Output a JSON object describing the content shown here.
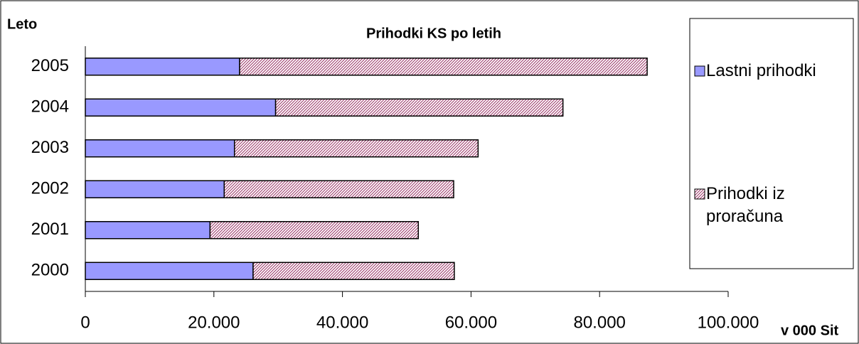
{
  "chart_data": {
    "type": "stacked-bar-horizontal",
    "title": "Prihodki KS po letih",
    "y_label": "Leto",
    "x_label": "v 000 Sit",
    "categories": [
      "2000",
      "2001",
      "2002",
      "2003",
      "2004",
      "2005"
    ],
    "series": [
      {
        "name": "Lastni prihodki",
        "color": "#9999ff",
        "values": [
          26100,
          19400,
          21600,
          23200,
          29600,
          24000
        ]
      },
      {
        "name": "Prihodki iz proračuna",
        "color": "#993366",
        "hatch": true,
        "values": [
          31300,
          32400,
          35700,
          37900,
          44700,
          63400
        ]
      }
    ],
    "xlim": [
      0,
      100000
    ],
    "xticks": [
      0,
      {
        "value": 20000,
        "label": "20.000"
      },
      {
        "value": 40000,
        "label": "40.000"
      },
      {
        "value": 60000,
        "label": "60.000"
      },
      {
        "value": 80000,
        "label": "80.000"
      },
      {
        "value": 100000,
        "label": "100.000"
      }
    ],
    "legend": "right"
  }
}
